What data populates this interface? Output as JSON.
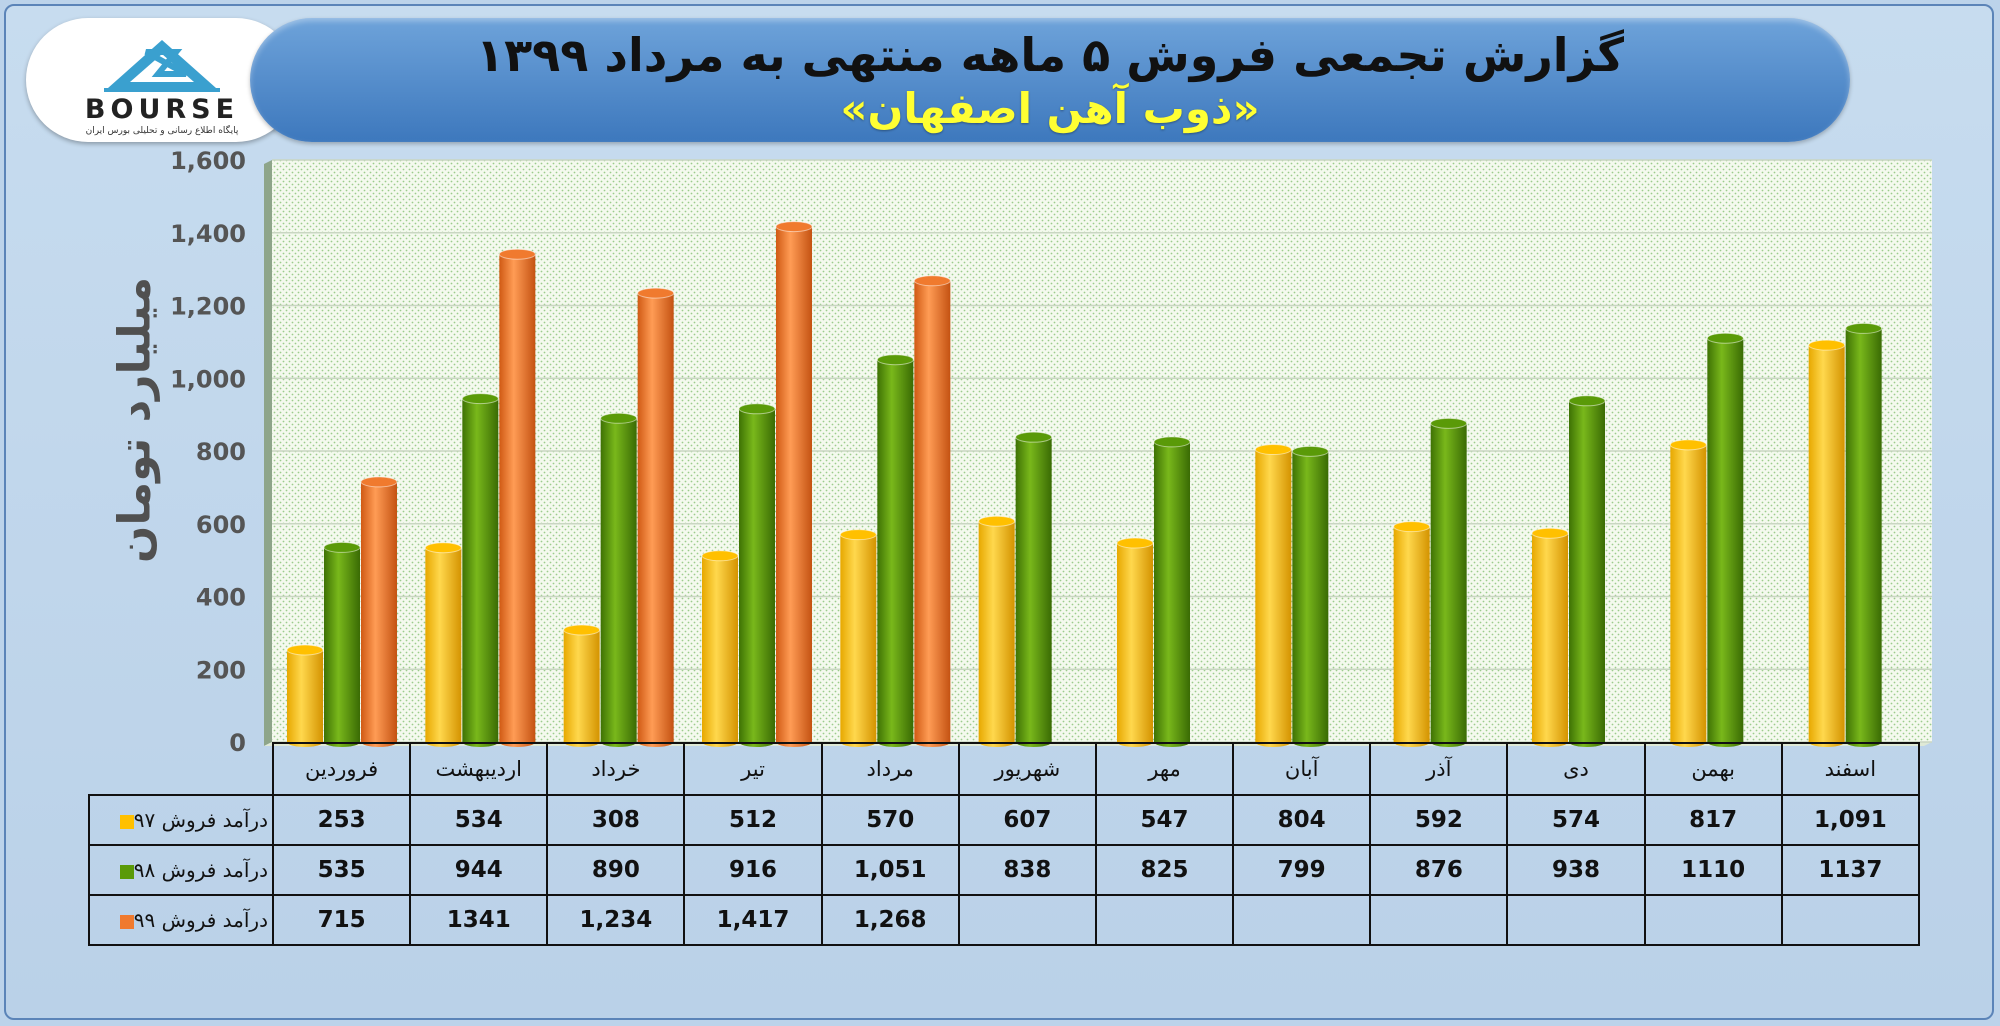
{
  "header": {
    "title": "گزارش تجمعی فروش ۵ ماهه منتهی به مرداد ۱۳۹۹",
    "subtitle": "«ذوب آهن اصفهان»"
  },
  "logo": {
    "wordmark": "BOURSE",
    "tagline": "پایگاه اطلاع رسانی و تحلیلی بورس ایران"
  },
  "colors": {
    "series_97": "#ffc000",
    "series_98": "#5a9a08",
    "series_99": "#f07a2e"
  },
  "chart_data": {
    "type": "bar",
    "ylabel": "میلیارد تومان",
    "ylim": [
      0,
      1600
    ],
    "yticks": [
      "0",
      "200",
      "400",
      "600",
      "800",
      "1,000",
      "1,200",
      "1,400",
      "1,600"
    ],
    "grid": true,
    "legend": "table-left",
    "categories": [
      "فروردین",
      "اردیبهشت",
      "خرداد",
      "تیر",
      "مرداد",
      "شهریور",
      "مهر",
      "آبان",
      "آذر",
      "دی",
      "بهمن",
      "اسفند"
    ],
    "series": [
      {
        "name": "درآمد فروش ۹۷",
        "values": [
          253,
          534,
          308,
          512,
          570,
          607,
          547,
          804,
          592,
          574,
          817,
          1091
        ],
        "labels": [
          "253",
          "534",
          "308",
          "512",
          "570",
          "607",
          "547",
          "804",
          "592",
          "574",
          "817",
          "1,091"
        ]
      },
      {
        "name": "درآمد فروش ۹۸",
        "values": [
          535,
          944,
          890,
          916,
          1051,
          838,
          825,
          799,
          876,
          938,
          1110,
          1137
        ],
        "labels": [
          "535",
          "944",
          "890",
          "916",
          "1,051",
          "838",
          "825",
          "799",
          "876",
          "938",
          "1110",
          "1137"
        ]
      },
      {
        "name": "درآمد فروش ۹۹",
        "values": [
          715,
          1341,
          1234,
          1417,
          1268,
          null,
          null,
          null,
          null,
          null,
          null,
          null
        ],
        "labels": [
          "715",
          "1341",
          "1,234",
          "1,417",
          "1,268",
          "",
          "",
          "",
          "",
          "",
          "",
          ""
        ]
      }
    ]
  }
}
